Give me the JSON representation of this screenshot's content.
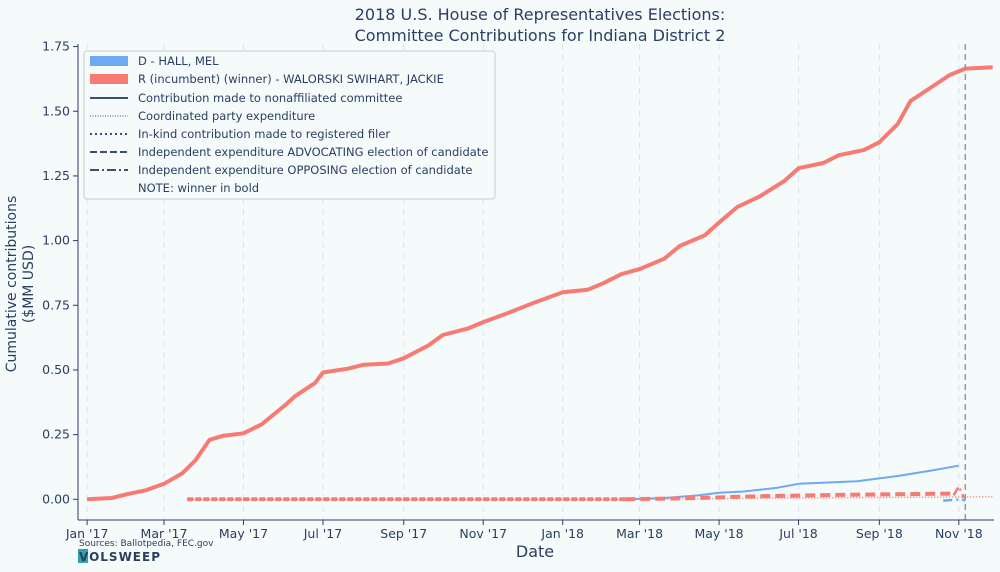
{
  "chart_data": {
    "type": "line",
    "title": [
      "2018 U.S. House of Representatives Elections:",
      "Committee Contributions for Indiana District 2"
    ],
    "xlabel": "Date",
    "ylabel": [
      "Cumulative contributions",
      "($MM USD)"
    ],
    "ylim": [
      -0.08,
      1.76
    ],
    "xlim": [
      "2016-12-25",
      "2018-11-28"
    ],
    "yticks": [
      0.0,
      0.25,
      0.5,
      0.75,
      1.0,
      1.25,
      1.5,
      1.75
    ],
    "ytick_labels": [
      "0.00",
      "0.25",
      "0.50",
      "0.75",
      "1.00",
      "1.25",
      "1.50",
      "1.75"
    ],
    "xticks": [
      "2017-01-01",
      "2017-03-01",
      "2017-05-01",
      "2017-07-01",
      "2017-09-01",
      "2017-11-01",
      "2018-01-01",
      "2018-03-01",
      "2018-05-01",
      "2018-07-01",
      "2018-09-01",
      "2018-11-01"
    ],
    "xtick_labels": [
      "Jan '17",
      "Mar '17",
      "May '17",
      "Jul '17",
      "Sep '17",
      "Nov '17",
      "Jan '18",
      "Mar '18",
      "May '18",
      "Jul '18",
      "Sep '18",
      "Nov '18"
    ],
    "election_date": "2018-11-06",
    "grid": true,
    "legend_position": "top-left",
    "legend": {
      "series_entries": [
        {
          "label": "D - HALL, MEL",
          "color": "#6fa8f5"
        },
        {
          "label": "R (incumbent) (winner) - WALORSKI SWIHART, JACKIE",
          "color": "#f77b72"
        }
      ],
      "style_entries": [
        {
          "label": "Contribution made to nonaffiliated committee",
          "style": "solid"
        },
        {
          "label": "Coordinated party expenditure",
          "style": "fine-dotted"
        },
        {
          "label": "In-kind contribution made to registered filer",
          "style": "dotted"
        },
        {
          "label": "Independent expenditure ADVOCATING election of candidate",
          "style": "dashed"
        },
        {
          "label": "Independent expenditure OPPOSING election of candidate",
          "style": "dashdot"
        },
        {
          "label": "NOTE: winner in bold",
          "style": "none"
        }
      ]
    },
    "series": [
      {
        "name": "R (incumbent) (winner) - WALORSKI SWIHART, JACKIE",
        "type": "Contribution made to nonaffiliated committee",
        "color": "#f77b72",
        "width": 4,
        "style": "solid",
        "points": [
          [
            "2017-01-01",
            0.0
          ],
          [
            "2017-01-20",
            0.005
          ],
          [
            "2017-02-01",
            0.02
          ],
          [
            "2017-02-15",
            0.035
          ],
          [
            "2017-03-01",
            0.06
          ],
          [
            "2017-03-15",
            0.1
          ],
          [
            "2017-03-25",
            0.15
          ],
          [
            "2017-04-05",
            0.23
          ],
          [
            "2017-04-15",
            0.245
          ],
          [
            "2017-05-01",
            0.255
          ],
          [
            "2017-05-15",
            0.29
          ],
          [
            "2017-06-01",
            0.36
          ],
          [
            "2017-06-10",
            0.4
          ],
          [
            "2017-06-25",
            0.45
          ],
          [
            "2017-07-01",
            0.49
          ],
          [
            "2017-07-20",
            0.505
          ],
          [
            "2017-08-01",
            0.52
          ],
          [
            "2017-08-20",
            0.525
          ],
          [
            "2017-09-01",
            0.545
          ],
          [
            "2017-09-20",
            0.595
          ],
          [
            "2017-10-01",
            0.635
          ],
          [
            "2017-10-20",
            0.66
          ],
          [
            "2017-11-01",
            0.685
          ],
          [
            "2017-11-20",
            0.72
          ],
          [
            "2017-12-10",
            0.76
          ],
          [
            "2018-01-01",
            0.8
          ],
          [
            "2018-01-20",
            0.81
          ],
          [
            "2018-02-01",
            0.835
          ],
          [
            "2018-02-15",
            0.87
          ],
          [
            "2018-03-01",
            0.89
          ],
          [
            "2018-03-20",
            0.93
          ],
          [
            "2018-04-01",
            0.98
          ],
          [
            "2018-04-20",
            1.02
          ],
          [
            "2018-05-01",
            1.07
          ],
          [
            "2018-05-15",
            1.13
          ],
          [
            "2018-06-01",
            1.17
          ],
          [
            "2018-06-20",
            1.23
          ],
          [
            "2018-07-01",
            1.28
          ],
          [
            "2018-07-20",
            1.3
          ],
          [
            "2018-08-01",
            1.33
          ],
          [
            "2018-08-20",
            1.35
          ],
          [
            "2018-09-01",
            1.38
          ],
          [
            "2018-09-15",
            1.45
          ],
          [
            "2018-09-25",
            1.54
          ],
          [
            "2018-10-10",
            1.59
          ],
          [
            "2018-10-25",
            1.64
          ],
          [
            "2018-11-06",
            1.665
          ],
          [
            "2018-11-27",
            1.67
          ]
        ]
      },
      {
        "name": "D - HALL, MEL",
        "type": "Contribution made to nonaffiliated committee",
        "color": "#6fa8f5",
        "width": 2,
        "style": "solid",
        "points": [
          [
            "2018-02-18",
            0.0
          ],
          [
            "2018-03-20",
            0.005
          ],
          [
            "2018-04-15",
            0.015
          ],
          [
            "2018-05-01",
            0.025
          ],
          [
            "2018-05-20",
            0.03
          ],
          [
            "2018-06-15",
            0.045
          ],
          [
            "2018-07-01",
            0.06
          ],
          [
            "2018-08-15",
            0.07
          ],
          [
            "2018-09-15",
            0.09
          ],
          [
            "2018-10-10",
            0.11
          ],
          [
            "2018-11-01",
            0.13
          ]
        ]
      },
      {
        "name": "R (incumbent) (winner) - WALORSKI SWIHART, JACKIE",
        "type": "In-kind contribution made to registered filer",
        "color": "#f77b72",
        "width": 4,
        "style": "dotted",
        "points": [
          [
            "2017-03-20",
            0.0
          ],
          [
            "2018-02-18",
            0.0
          ]
        ]
      },
      {
        "name": "R (incumbent) (winner) - WALORSKI SWIHART, JACKIE",
        "type": "Independent expenditure ADVOCATING election of candidate",
        "color": "#f77b72",
        "width": 4,
        "style": "dashed",
        "points": [
          [
            "2018-02-18",
            0.0
          ],
          [
            "2018-04-15",
            0.005
          ],
          [
            "2018-06-01",
            0.012
          ],
          [
            "2018-08-01",
            0.017
          ],
          [
            "2018-10-28",
            0.022
          ]
        ]
      },
      {
        "name": "R (incumbent) (winner) - WALORSKI SWIHART, JACKIE",
        "type": "Coordinated party expenditure",
        "color": "#f77b72",
        "width": 1.5,
        "style": "fine-dotted",
        "points": [
          [
            "2018-02-18",
            0.0
          ],
          [
            "2018-11-27",
            0.01
          ]
        ]
      },
      {
        "name": "R (incumbent) (winner) - WALORSKI SWIHART, JACKIE",
        "type": "Independent expenditure OPPOSING election of candidate",
        "color": "#f77b72",
        "width": 2.5,
        "style": "dashdot",
        "points": [
          [
            "2018-10-28",
            0.015
          ],
          [
            "2018-11-01",
            0.05
          ],
          [
            "2018-11-05",
            0.005
          ]
        ]
      },
      {
        "name": "D - HALL, MEL",
        "type": "Independent expenditure OPPOSING election of candidate",
        "color": "#6fa8f5",
        "width": 2.5,
        "style": "dashdot",
        "points": [
          [
            "2018-10-20",
            -0.005
          ],
          [
            "2018-11-03",
            0.0
          ],
          [
            "2018-11-06",
            -0.005
          ]
        ]
      }
    ],
    "sources": "Sources: Ballotpedia, FEC.gov",
    "brand": "VOLSWEEP"
  }
}
